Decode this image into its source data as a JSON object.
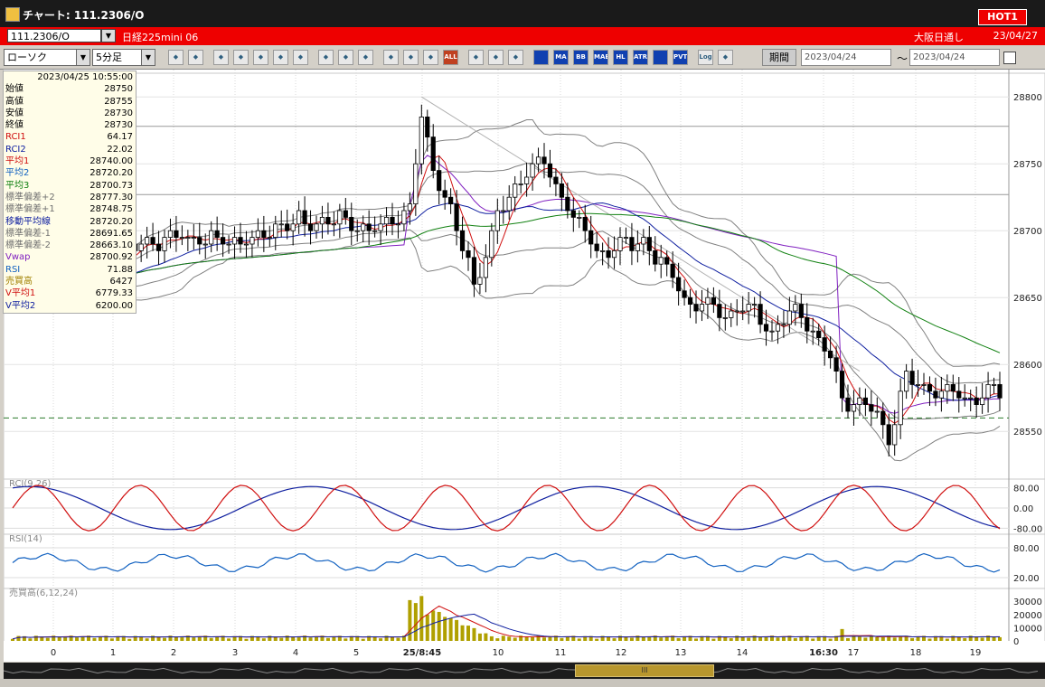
{
  "window": {
    "title": "チャート: 111.2306/O",
    "hot_label": "HOT1"
  },
  "symbol_bar": {
    "code": "111.2306/O",
    "name": "日経225mini 06",
    "market": "大阪日通し",
    "date": "23/04/27"
  },
  "toolbar": {
    "chart_type": "ローソク",
    "interval": "5分足",
    "buttons": [
      {
        "name": "zoom-button",
        "label": "",
        "icon": "magnifier-icon",
        "style": "ico"
      },
      {
        "name": "compress-button",
        "label": "",
        "icon": "bars-icon",
        "style": "ico"
      },
      {
        "name": "tool-button-1",
        "label": "",
        "icon": "chart-icon",
        "style": "ico"
      },
      {
        "name": "tool-button-2",
        "label": "",
        "icon": "chart-icon",
        "style": "ico"
      },
      {
        "name": "tool-button-3",
        "label": "",
        "icon": "chart-icon",
        "style": "ico"
      },
      {
        "name": "tool-button-4",
        "label": "",
        "icon": "chart-icon",
        "style": "ico"
      },
      {
        "name": "tool-button-5",
        "label": "",
        "icon": "chart-icon",
        "style": "ico"
      },
      {
        "name": "draw-line-button",
        "label": "",
        "icon": "pencil-icon",
        "style": "ico"
      },
      {
        "name": "cursor-button",
        "label": "",
        "icon": "cursor-icon",
        "style": "ico"
      },
      {
        "name": "undo-button",
        "label": "",
        "icon": "arrow-icon",
        "style": "ico"
      },
      {
        "name": "tool-button-6",
        "label": "",
        "icon": "chart-icon",
        "style": "ico"
      },
      {
        "name": "tool-button-7",
        "label": "",
        "icon": "chart-icon",
        "style": "ico"
      },
      {
        "name": "tool-button-8",
        "label": "",
        "icon": "chart-icon",
        "style": "ico"
      },
      {
        "name": "all-button",
        "label": "ALL",
        "icon": "",
        "style": "red"
      },
      {
        "name": "settings-button",
        "label": "",
        "icon": "gear-icon",
        "style": "ico"
      },
      {
        "name": "tools-button",
        "label": "",
        "icon": "wrench-icon",
        "style": "ico"
      },
      {
        "name": "color-button",
        "label": "",
        "icon": "palette-icon",
        "style": "ico"
      },
      {
        "name": "ind-button-1",
        "label": "",
        "icon": "",
        "style": "blue"
      },
      {
        "name": "ma-button",
        "label": "MA",
        "icon": "",
        "style": "blue"
      },
      {
        "name": "bb-button",
        "label": "BB",
        "icon": "",
        "style": "blue"
      },
      {
        "name": "mae-button",
        "label": "MAE",
        "icon": "",
        "style": "blue"
      },
      {
        "name": "hl-button",
        "label": "HL",
        "icon": "",
        "style": "blue"
      },
      {
        "name": "atr-button",
        "label": "ATR",
        "icon": "",
        "style": "blue"
      },
      {
        "name": "ind-button-2",
        "label": "",
        "icon": "",
        "style": "blue"
      },
      {
        "name": "pvt-button",
        "label": "PVT",
        "icon": "",
        "style": "blue"
      },
      {
        "name": "log-button",
        "label": "Log",
        "icon": "",
        "style": "ico"
      },
      {
        "name": "export-button",
        "label": "",
        "icon": "export-icon",
        "style": "ico"
      }
    ],
    "period_label": "期間",
    "date_from": "2023/04/24",
    "date_to": "2023/04/24"
  },
  "info_panel": {
    "datetime": "2023/04/25  10:55:00",
    "rows": [
      {
        "label": "始値",
        "value": "28750",
        "color": "#000000"
      },
      {
        "label": "高値",
        "value": "28755",
        "color": "#000000"
      },
      {
        "label": "安値",
        "value": "28730",
        "color": "#000000"
      },
      {
        "label": "終値",
        "value": "28730",
        "color": "#000000"
      },
      {
        "label": "RCI1",
        "value": "64.17",
        "color": "#d01010"
      },
      {
        "label": "RCI2",
        "value": "22.02",
        "color": "#1020a0"
      },
      {
        "label": "平均1",
        "value": "28740.00",
        "color": "#d01010"
      },
      {
        "label": "平均2",
        "value": "28720.20",
        "color": "#1060c0"
      },
      {
        "label": "平均3",
        "value": "28700.73",
        "color": "#108010"
      },
      {
        "label": "標準偏差+2",
        "value": "28777.30",
        "color": "#707070"
      },
      {
        "label": "標準偏差+1",
        "value": "28748.75",
        "color": "#707070"
      },
      {
        "label": "移動平均線",
        "value": "28720.20",
        "color": "#1020a0"
      },
      {
        "label": "標準偏差-1",
        "value": "28691.65",
        "color": "#707070"
      },
      {
        "label": "標準偏差-2",
        "value": "28663.10",
        "color": "#707070"
      },
      {
        "label": "Vwap",
        "value": "28700.92",
        "color": "#8020c0"
      },
      {
        "label": "RSI",
        "value": "71.88",
        "color": "#1060c0"
      },
      {
        "label": "売買高",
        "value": "6427",
        "color": "#a08000"
      },
      {
        "label": "V平均1",
        "value": "6779.33",
        "color": "#d01010"
      },
      {
        "label": "V平均2",
        "value": "6200.00",
        "color": "#1020a0"
      }
    ]
  },
  "chart_data": [
    {
      "type": "candlestick",
      "title": "",
      "ylim": [
        28515,
        28815
      ],
      "yticks": [
        28550,
        28600,
        28650,
        28700,
        28750,
        28800
      ],
      "x_tick_labels": [
        "0",
        "1",
        "2",
        "3",
        "4",
        "5",
        "25/8:45",
        "10",
        "11",
        "12",
        "13",
        "14",
        "16:30",
        "17",
        "18",
        "19"
      ],
      "levels": [
        {
          "value": 28778
        },
        {
          "value": 28727
        },
        {
          "value": 28560,
          "style": "dashed"
        }
      ],
      "key_points": [
        {
          "index": 0,
          "close": 28660
        },
        {
          "index": 10,
          "close": 28660
        },
        {
          "index": 22,
          "close": 28690
        },
        {
          "index": 30,
          "close": 28695
        },
        {
          "index": 41,
          "close": 28692
        },
        {
          "index": 46,
          "close": 28705
        },
        {
          "index": 55,
          "close": 28708
        },
        {
          "index": 62,
          "close": 28700
        },
        {
          "index": 68,
          "close": 28720
        },
        {
          "index": 70,
          "close": 28785
        },
        {
          "index": 72,
          "close": 28745
        },
        {
          "index": 75,
          "close": 28715
        },
        {
          "index": 79,
          "close": 28660
        },
        {
          "index": 83,
          "close": 28710
        },
        {
          "index": 88,
          "close": 28745
        },
        {
          "index": 91,
          "close": 28750
        },
        {
          "index": 95,
          "close": 28720
        },
        {
          "index": 100,
          "close": 28685
        },
        {
          "index": 105,
          "close": 28688
        },
        {
          "index": 108,
          "close": 28692
        },
        {
          "index": 112,
          "close": 28670
        },
        {
          "index": 116,
          "close": 28645
        },
        {
          "index": 122,
          "close": 28640
        },
        {
          "index": 127,
          "close": 28642
        },
        {
          "index": 130,
          "close": 28625
        },
        {
          "index": 134,
          "close": 28640
        },
        {
          "index": 137,
          "close": 28625
        },
        {
          "index": 140,
          "close": 28605
        },
        {
          "index": 142,
          "close": 28575
        },
        {
          "index": 145,
          "close": 28570
        },
        {
          "index": 148,
          "close": 28565
        },
        {
          "index": 150,
          "close": 28545
        },
        {
          "index": 153,
          "close": 28590
        },
        {
          "index": 158,
          "close": 28580
        },
        {
          "index": 163,
          "close": 28575
        },
        {
          "index": 169,
          "close": 28580
        }
      ]
    },
    {
      "type": "line",
      "title": "RCI(9,26)",
      "ylim": [
        -100,
        100
      ],
      "yticks": [
        80,
        0,
        -80
      ],
      "yticklabels": [
        "80.00",
        "0.00",
        "-80.00"
      ],
      "series": [
        {
          "name": "RCI1",
          "color": "#d01010"
        },
        {
          "name": "RCI2",
          "color": "#1020a0"
        }
      ]
    },
    {
      "type": "line",
      "title": "RSI(14)",
      "ylim": [
        0,
        100
      ],
      "yticks": [
        80,
        20
      ],
      "yticklabels": [
        "80.00",
        "20.00"
      ],
      "series": [
        {
          "name": "RSI",
          "color": "#1060c0"
        }
      ]
    },
    {
      "type": "bar",
      "title": "売買高(6,12,24)",
      "ylim": [
        0,
        37000
      ],
      "yticks": [
        30000,
        20000,
        10000,
        0
      ],
      "yticklabels": [
        "30000",
        "20000",
        "10000",
        "0"
      ],
      "series": [
        {
          "name": "売買高",
          "color": "#b0a000"
        },
        {
          "name": "V平均1",
          "color": "#d01010"
        },
        {
          "name": "V平均2",
          "color": "#1020a0"
        }
      ]
    }
  ],
  "colors": {
    "candle_up": "#ffffff",
    "candle_down": "#000000",
    "avg1": "#d01010",
    "avg2": "#1020a0",
    "avg3": "#108010",
    "band": "#808080",
    "vwap": "#8020c0",
    "trend": "#b0b0b0",
    "volume": "#b0a000"
  }
}
